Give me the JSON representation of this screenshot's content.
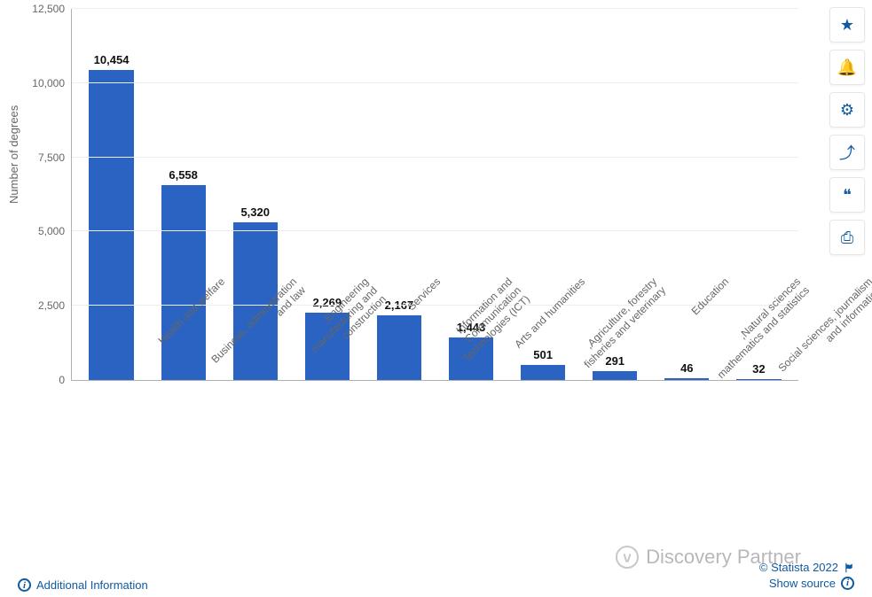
{
  "chart": {
    "type": "bar",
    "y_axis_title": "Number of degrees",
    "y_axis_title_fontsize": 13,
    "ylim": [
      0,
      12500
    ],
    "yticks": [
      0,
      2500,
      5000,
      7500,
      10000,
      12500
    ],
    "ytick_labels": [
      "0",
      "2,500",
      "5,000",
      "7,500",
      "10,000",
      "12,500"
    ],
    "tick_fontsize": 12,
    "value_label_fontsize": 13,
    "value_label_fontweight": 700,
    "categories": [
      "Health and welfare",
      "Business, administration\nand law",
      "Engineering,\nmanufacturing and\nconstruction",
      "Services",
      "Information and\nCommunication\nTechnologies (ICT)",
      "Arts and humanities",
      "Agriculture, forestry,\nfisheries and veterinary",
      "Education",
      "Natural sciences,\nmathematics and statistics",
      "Social sciences, journalism\nand information"
    ],
    "values": [
      10454,
      6558,
      5320,
      2269,
      2167,
      1443,
      501,
      291,
      46,
      32
    ],
    "value_labels": [
      "10,454",
      "6,558",
      "5,320",
      "2,269",
      "2,167",
      "1,443",
      "501",
      "291",
      "46",
      "32"
    ],
    "bar_color": "#2a63c1",
    "bar_width": 0.62,
    "background_color": "#ffffff",
    "grid_color": "#eeeeee",
    "axis_color": "#b0b0b0",
    "text_color": "#666666",
    "x_label_rotation_deg": -45
  },
  "toolbar": {
    "buttons": [
      {
        "name": "favorite-button",
        "icon": "star-icon",
        "glyph": "★"
      },
      {
        "name": "notify-button",
        "icon": "bell-icon",
        "glyph": "🔔"
      },
      {
        "name": "settings-button",
        "icon": "gear-icon",
        "glyph": "⚙"
      },
      {
        "name": "share-button",
        "icon": "share-icon",
        "glyph": "⤴"
      },
      {
        "name": "cite-button",
        "icon": "quote-icon",
        "glyph": "❝"
      },
      {
        "name": "print-button",
        "icon": "print-icon",
        "glyph": "⎙"
      }
    ],
    "button_bg": "#ffffff",
    "button_border": "#e6e6e6",
    "icon_color": "#0f5aa0"
  },
  "footer": {
    "additional_info_label": "Additional Information",
    "copyright": "© Statista 2022",
    "show_source_label": "Show source",
    "link_color": "#0f5aa0"
  },
  "watermark": {
    "text": "Discovery Partner",
    "color": "#b8b8b8"
  }
}
